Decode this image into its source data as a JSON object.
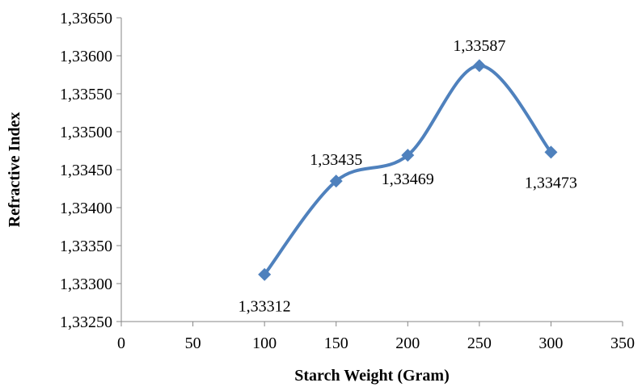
{
  "chart_data": {
    "type": "line",
    "title": "",
    "xlabel": "Starch Weight (Gram)",
    "ylabel": "Refractive Index",
    "xlim": [
      0,
      350
    ],
    "ylim": [
      1.3325,
      1.3365
    ],
    "x_ticks": [
      "0",
      "50",
      "100",
      "150",
      "200",
      "250",
      "300",
      "350"
    ],
    "y_ticks": [
      "1,33250",
      "1,33300",
      "1,33350",
      "1,33400",
      "1,33450",
      "1,33500",
      "1,33550",
      "1,33600",
      "1,33650"
    ],
    "grid": false,
    "smoothed": true,
    "marker": "diamond",
    "color": "#4F81BD",
    "series": [
      {
        "x": [
          100,
          150,
          200,
          250,
          300
        ],
        "y": [
          1.33312,
          1.33435,
          1.33469,
          1.33587,
          1.33473
        ],
        "labels": [
          "1,33312",
          "1,33435",
          "1,33469",
          "1,33587",
          "1,33473"
        ]
      }
    ]
  }
}
